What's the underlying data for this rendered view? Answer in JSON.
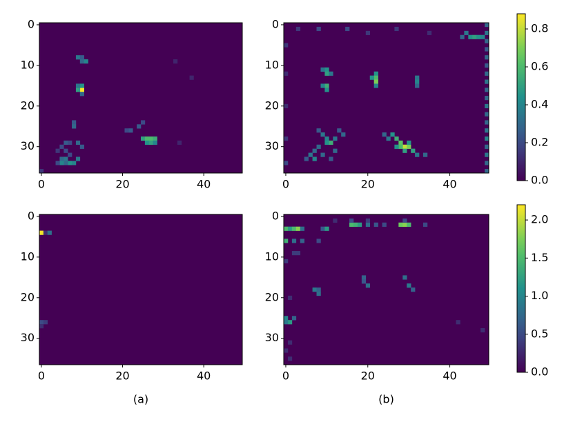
{
  "chart_data": [
    {
      "type": "heatmap",
      "xlim": [
        -0.5,
        49.5
      ],
      "ylim": [
        36.5,
        -0.5
      ],
      "xticks": [
        0,
        20,
        40
      ],
      "yticks": [
        0,
        10,
        20,
        30
      ],
      "clim": [
        0,
        0.88
      ],
      "cells": [
        [
          9,
          8,
          0.35
        ],
        [
          10,
          8,
          0.25
        ],
        [
          10,
          9,
          0.3
        ],
        [
          11,
          9,
          0.4
        ],
        [
          10,
          16,
          0.88
        ],
        [
          9,
          16,
          0.5
        ],
        [
          10,
          15,
          0.45
        ],
        [
          9,
          15,
          0.35
        ],
        [
          10,
          17,
          0.3
        ],
        [
          8,
          24,
          0.25
        ],
        [
          8,
          25,
          0.3
        ],
        [
          25,
          24,
          0.2
        ],
        [
          24,
          25,
          0.25
        ],
        [
          22,
          26,
          0.25
        ],
        [
          21,
          26,
          0.2
        ],
        [
          25,
          28,
          0.5
        ],
        [
          26,
          28,
          0.6
        ],
        [
          27,
          28,
          0.6
        ],
        [
          28,
          28,
          0.55
        ],
        [
          26,
          29,
          0.45
        ],
        [
          27,
          29,
          0.5
        ],
        [
          28,
          29,
          0.4
        ],
        [
          6,
          29,
          0.25
        ],
        [
          7,
          29,
          0.2
        ],
        [
          9,
          29,
          0.3
        ],
        [
          10,
          30,
          0.25
        ],
        [
          5,
          30,
          0.2
        ],
        [
          4,
          31,
          0.15
        ],
        [
          6,
          31,
          0.2
        ],
        [
          7,
          32,
          0.2
        ],
        [
          5,
          33,
          0.3
        ],
        [
          6,
          33,
          0.35
        ],
        [
          7,
          34,
          0.45
        ],
        [
          8,
          34,
          0.4
        ],
        [
          6,
          34,
          0.3
        ],
        [
          5,
          34,
          0.4
        ],
        [
          9,
          33,
          0.35
        ],
        [
          4,
          34,
          0.2
        ],
        [
          33,
          9,
          0.1
        ],
        [
          37,
          13,
          0.1
        ],
        [
          34,
          29,
          0.1
        ],
        [
          0,
          36,
          0.15
        ]
      ]
    },
    {
      "type": "heatmap",
      "xlim": [
        -0.5,
        49.5
      ],
      "ylim": [
        36.5,
        -0.5
      ],
      "xticks": [
        0,
        20,
        40
      ],
      "yticks": [
        0,
        10,
        20,
        30
      ],
      "clim": [
        0,
        0.88
      ],
      "colorbar": {
        "ticks": [
          {
            "value": 0,
            "label": "0.0"
          },
          {
            "value": 0.2,
            "label": "0.2"
          },
          {
            "value": 0.4,
            "label": "0.4"
          },
          {
            "value": 0.6,
            "label": "0.6"
          },
          {
            "value": 0.8,
            "label": "0.8"
          }
        ]
      },
      "cells": [
        [
          49,
          0,
          0.3
        ],
        [
          49,
          2,
          0.35
        ],
        [
          49,
          4,
          0.3
        ],
        [
          49,
          6,
          0.25
        ],
        [
          49,
          8,
          0.3
        ],
        [
          49,
          10,
          0.25
        ],
        [
          49,
          12,
          0.3
        ],
        [
          49,
          14,
          0.35
        ],
        [
          49,
          16,
          0.3
        ],
        [
          49,
          18,
          0.3
        ],
        [
          49,
          20,
          0.35
        ],
        [
          49,
          22,
          0.3
        ],
        [
          49,
          24,
          0.3
        ],
        [
          49,
          26,
          0.35
        ],
        [
          49,
          28,
          0.4
        ],
        [
          49,
          30,
          0.3
        ],
        [
          49,
          32,
          0.35
        ],
        [
          49,
          34,
          0.3
        ],
        [
          49,
          36,
          0.3
        ],
        [
          0,
          5,
          0.15
        ],
        [
          0,
          12,
          0.12
        ],
        [
          0,
          20,
          0.12
        ],
        [
          0,
          28,
          0.15
        ],
        [
          0,
          34,
          0.2
        ],
        [
          3,
          1,
          0.15
        ],
        [
          8,
          1,
          0.2
        ],
        [
          15,
          1,
          0.2
        ],
        [
          20,
          2,
          0.15
        ],
        [
          27,
          1,
          0.15
        ],
        [
          35,
          2,
          0.12
        ],
        [
          44,
          2,
          0.35
        ],
        [
          45,
          3,
          0.45
        ],
        [
          46,
          3,
          0.5
        ],
        [
          47,
          3,
          0.45
        ],
        [
          48,
          3,
          0.4
        ],
        [
          43,
          3,
          0.3
        ],
        [
          10,
          11,
          0.45
        ],
        [
          10,
          12,
          0.5
        ],
        [
          9,
          11,
          0.35
        ],
        [
          11,
          12,
          0.35
        ],
        [
          10,
          15,
          0.55
        ],
        [
          10,
          16,
          0.45
        ],
        [
          9,
          15,
          0.4
        ],
        [
          22,
          12,
          0.45
        ],
        [
          22,
          13,
          0.6
        ],
        [
          22,
          14,
          0.7
        ],
        [
          21,
          13,
          0.45
        ],
        [
          22,
          15,
          0.4
        ],
        [
          32,
          13,
          0.35
        ],
        [
          32,
          14,
          0.4
        ],
        [
          32,
          15,
          0.3
        ],
        [
          8,
          26,
          0.25
        ],
        [
          9,
          27,
          0.35
        ],
        [
          10,
          28,
          0.4
        ],
        [
          11,
          29,
          0.55
        ],
        [
          10,
          29,
          0.45
        ],
        [
          12,
          28,
          0.35
        ],
        [
          8,
          30,
          0.3
        ],
        [
          7,
          31,
          0.3
        ],
        [
          6,
          32,
          0.35
        ],
        [
          7,
          33,
          0.4
        ],
        [
          9,
          32,
          0.3
        ],
        [
          12,
          31,
          0.3
        ],
        [
          14,
          27,
          0.3
        ],
        [
          13,
          26,
          0.25
        ],
        [
          5,
          33,
          0.25
        ],
        [
          11,
          33,
          0.25
        ],
        [
          26,
          27,
          0.45
        ],
        [
          27,
          28,
          0.55
        ],
        [
          28,
          29,
          0.65
        ],
        [
          29,
          30,
          0.8
        ],
        [
          30,
          30,
          0.7
        ],
        [
          28,
          30,
          0.6
        ],
        [
          31,
          31,
          0.5
        ],
        [
          25,
          28,
          0.35
        ],
        [
          27,
          30,
          0.45
        ],
        [
          29,
          31,
          0.5
        ],
        [
          32,
          32,
          0.35
        ],
        [
          34,
          32,
          0.3
        ],
        [
          24,
          27,
          0.3
        ],
        [
          30,
          29,
          0.45
        ]
      ]
    },
    {
      "type": "heatmap",
      "xlim": [
        -0.5,
        49.5
      ],
      "ylim": [
        36.5,
        -0.5
      ],
      "xticks": [
        0,
        20,
        40
      ],
      "yticks": [
        0,
        10,
        20,
        30
      ],
      "clim": [
        0,
        2.2
      ],
      "xlabel": "(a)",
      "cells": [
        [
          0,
          4,
          2.15
        ],
        [
          1,
          4,
          0.3
        ],
        [
          2,
          4,
          0.8
        ],
        [
          0,
          26,
          0.5
        ],
        [
          1,
          26,
          0.4
        ],
        [
          0,
          27,
          0.3
        ]
      ]
    },
    {
      "type": "heatmap",
      "xlim": [
        -0.5,
        49.5
      ],
      "ylim": [
        36.5,
        -0.5
      ],
      "xticks": [
        0,
        20,
        40
      ],
      "yticks": [
        0,
        10,
        20,
        30
      ],
      "clim": [
        0,
        2.2
      ],
      "xlabel": "(b)",
      "colorbar": {
        "ticks": [
          {
            "value": 0,
            "label": "0.0"
          },
          {
            "value": 0.5,
            "label": "0.5"
          },
          {
            "value": 1,
            "label": "1.0"
          },
          {
            "value": 1.5,
            "label": "1.5"
          },
          {
            "value": 2,
            "label": "2.0"
          }
        ]
      },
      "cells": [
        [
          16,
          2,
          1.5
        ],
        [
          17,
          2,
          1.4
        ],
        [
          18,
          2,
          1.2
        ],
        [
          28,
          2,
          1.7
        ],
        [
          29,
          2,
          1.8
        ],
        [
          30,
          2,
          1.5
        ],
        [
          20,
          2,
          0.8
        ],
        [
          22,
          2,
          0.6
        ],
        [
          24,
          2,
          0.5
        ],
        [
          34,
          2,
          0.5
        ],
        [
          0,
          3,
          1.5
        ],
        [
          1,
          3,
          1.2
        ],
        [
          2,
          3,
          1.5
        ],
        [
          3,
          3,
          1.8
        ],
        [
          4,
          3,
          0.8
        ],
        [
          9,
          3,
          0.6
        ],
        [
          10,
          3,
          1.2
        ],
        [
          0,
          6,
          1.4
        ],
        [
          2,
          6,
          0.8
        ],
        [
          4,
          6,
          0.7
        ],
        [
          8,
          6,
          0.5
        ],
        [
          2,
          9,
          0.4
        ],
        [
          3,
          9,
          0.4
        ],
        [
          7,
          18,
          0.9
        ],
        [
          8,
          19,
          0.8
        ],
        [
          8,
          18,
          0.7
        ],
        [
          19,
          15,
          0.7
        ],
        [
          19,
          16,
          0.6
        ],
        [
          20,
          17,
          0.8
        ],
        [
          29,
          15,
          0.8
        ],
        [
          30,
          17,
          0.9
        ],
        [
          31,
          18,
          0.7
        ],
        [
          0,
          25,
          1.0
        ],
        [
          1,
          26,
          1.2
        ],
        [
          0,
          26,
          0.9
        ],
        [
          2,
          25,
          0.7
        ],
        [
          42,
          26,
          0.3
        ],
        [
          48,
          28,
          0.3
        ],
        [
          1,
          31,
          0.3
        ],
        [
          0,
          33,
          0.3
        ],
        [
          1,
          35,
          0.3
        ],
        [
          0,
          11,
          0.4
        ],
        [
          1,
          20,
          0.3
        ],
        [
          12,
          1,
          0.3
        ],
        [
          16,
          1,
          0.5
        ],
        [
          20,
          1,
          0.4
        ],
        [
          29,
          1,
          0.5
        ]
      ]
    }
  ]
}
